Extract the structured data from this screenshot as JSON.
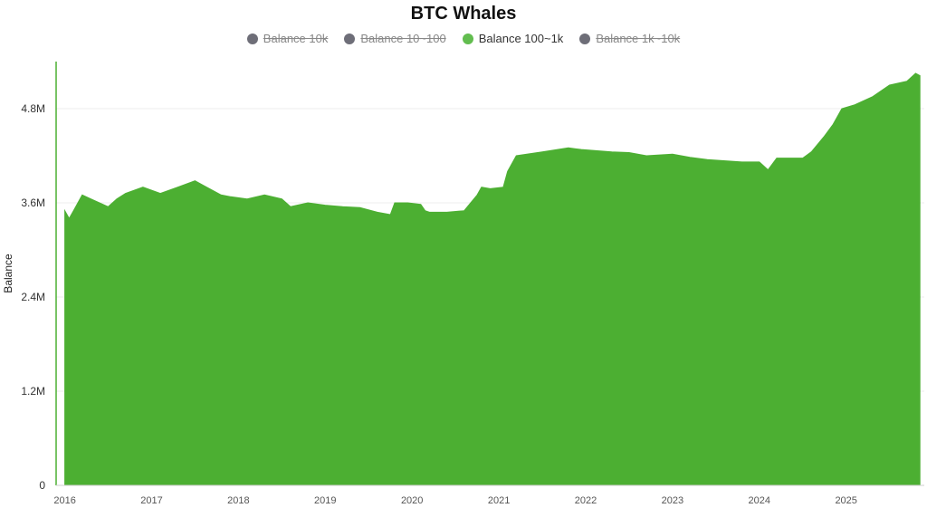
{
  "chart_data": {
    "type": "area",
    "title": "BTC Whales",
    "ylabel": "Balance",
    "xlabel": "",
    "ylim": [
      0,
      5400000
    ],
    "xlim": [
      2015.9,
      2025.9
    ],
    "yticks": [
      {
        "value": 0,
        "label": "0"
      },
      {
        "value": 1200000,
        "label": "1.2M"
      },
      {
        "value": 2400000,
        "label": "2.4M"
      },
      {
        "value": 3600000,
        "label": "3.6M"
      },
      {
        "value": 4800000,
        "label": "4.8M"
      }
    ],
    "xticks": [
      "2016",
      "2017",
      "2018",
      "2019",
      "2020",
      "2021",
      "2022",
      "2023",
      "2024",
      "2025"
    ],
    "grid": true,
    "legend_position": "top-center",
    "legend": [
      {
        "name": "Balance 10k",
        "color": "#6e6e78",
        "active": false
      },
      {
        "name": "Balance 10~100",
        "color": "#6e6e78",
        "active": false
      },
      {
        "name": "Balance 100~1k",
        "color": "#62bd4f",
        "active": true
      },
      {
        "name": "Balance 1k~10k",
        "color": "#6e6e78",
        "active": false
      }
    ],
    "series": [
      {
        "name": "Balance 100~1k",
        "color": "#4caf32",
        "x": [
          2016.0,
          2016.05,
          2016.1,
          2016.2,
          2016.3,
          2016.5,
          2016.6,
          2016.7,
          2016.9,
          2017.1,
          2017.3,
          2017.5,
          2017.6,
          2017.8,
          2017.9,
          2018.1,
          2018.3,
          2018.5,
          2018.6,
          2018.8,
          2019.0,
          2019.2,
          2019.4,
          2019.6,
          2019.75,
          2019.8,
          2019.95,
          2020.1,
          2020.15,
          2020.2,
          2020.4,
          2020.6,
          2020.75,
          2020.8,
          2020.9,
          2021.05,
          2021.1,
          2021.2,
          2021.5,
          2021.8,
          2021.95,
          2022.3,
          2022.5,
          2022.7,
          2023.0,
          2023.2,
          2023.4,
          2023.8,
          2024.0,
          2024.1,
          2024.2,
          2024.5,
          2024.6,
          2024.75,
          2024.85,
          2024.95,
          2025.1,
          2025.3,
          2025.5,
          2025.7,
          2025.8,
          2025.85
        ],
        "values": [
          3500000,
          3400000,
          3500000,
          3700000,
          3650000,
          3550000,
          3650000,
          3720000,
          3800000,
          3720000,
          3800000,
          3880000,
          3820000,
          3700000,
          3680000,
          3650000,
          3700000,
          3650000,
          3550000,
          3600000,
          3570000,
          3550000,
          3540000,
          3480000,
          3450000,
          3600000,
          3600000,
          3580000,
          3500000,
          3480000,
          3480000,
          3500000,
          3700000,
          3800000,
          3780000,
          3800000,
          4000000,
          4200000,
          4250000,
          4300000,
          4280000,
          4250000,
          4240000,
          4200000,
          4220000,
          4180000,
          4150000,
          4120000,
          4120000,
          4020000,
          4170000,
          4170000,
          4250000,
          4450000,
          4600000,
          4800000,
          4850000,
          4950000,
          5100000,
          5150000,
          5250000,
          5220000
        ]
      }
    ]
  }
}
